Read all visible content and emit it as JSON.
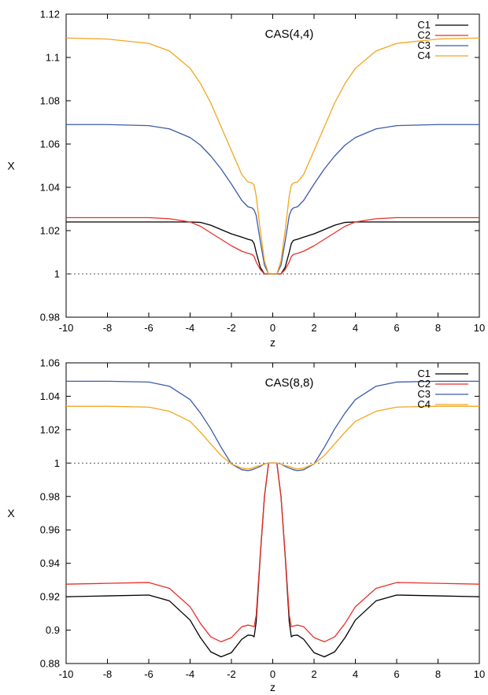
{
  "chart_data": [
    {
      "type": "line",
      "title": "CAS(4,4)",
      "xlabel": "z",
      "ylabel": "X",
      "xlim": [
        -10,
        10
      ],
      "ylim": [
        0.98,
        1.12
      ],
      "xticks": [
        -10,
        -8,
        -6,
        -4,
        -2,
        0,
        2,
        4,
        6,
        8,
        10
      ],
      "yticks": [
        0.98,
        1,
        1.02,
        1.04,
        1.06,
        1.08,
        1.1,
        1.12
      ],
      "x": [
        -10,
        -8,
        -6,
        -5,
        -4,
        -3.5,
        -3,
        -2.5,
        -2,
        -1.5,
        -1.2,
        -1,
        -0.9,
        -0.8,
        -0.6,
        -0.4,
        -0.2,
        0,
        0.2,
        0.4,
        0.6,
        0.8,
        0.9,
        1,
        1.2,
        1.5,
        2,
        2.5,
        3,
        3.5,
        4,
        5,
        6,
        8,
        10
      ],
      "reference_line": {
        "y": 1,
        "style": "dotted"
      },
      "legend_position": "top-right",
      "grid": false,
      "series": [
        {
          "name": "C1",
          "color": "#000000",
          "values": [
            1.024,
            1.024,
            1.024,
            1.024,
            1.024,
            1.0238,
            1.0225,
            1.0205,
            1.0185,
            1.017,
            1.016,
            1.0155,
            1.014,
            1.01,
            1.003,
            1.0,
            1.0,
            1.0,
            1.0,
            1.0,
            1.003,
            1.01,
            1.014,
            1.0155,
            1.016,
            1.017,
            1.0185,
            1.0205,
            1.0225,
            1.0238,
            1.024,
            1.024,
            1.024,
            1.024,
            1.024
          ]
        },
        {
          "name": "C2",
          "color": "#e8302a",
          "values": [
            1.026,
            1.026,
            1.026,
            1.0255,
            1.024,
            1.022,
            1.019,
            1.016,
            1.013,
            1.0105,
            1.0095,
            1.009,
            1.008,
            1.0055,
            1.002,
            1.0,
            1.0,
            1.0,
            1.0,
            1.0,
            1.002,
            1.0055,
            1.008,
            1.009,
            1.0095,
            1.0105,
            1.013,
            1.016,
            1.019,
            1.022,
            1.024,
            1.0255,
            1.026,
            1.026,
            1.026
          ]
        },
        {
          "name": "C3",
          "color": "#3c5ba8",
          "values": [
            1.069,
            1.069,
            1.0685,
            1.067,
            1.063,
            1.0595,
            1.0545,
            1.0485,
            1.0415,
            1.034,
            1.031,
            1.0305,
            1.0295,
            1.027,
            1.015,
            1.004,
            1.0,
            1.0,
            1.0,
            1.004,
            1.015,
            1.027,
            1.0295,
            1.0305,
            1.031,
            1.034,
            1.0415,
            1.0485,
            1.0545,
            1.0595,
            1.063,
            1.067,
            1.0685,
            1.069,
            1.069
          ]
        },
        {
          "name": "C4",
          "color": "#f2a51f",
          "values": [
            1.109,
            1.1085,
            1.1065,
            1.103,
            1.095,
            1.088,
            1.079,
            1.068,
            1.057,
            1.046,
            1.0425,
            1.042,
            1.041,
            1.036,
            1.02,
            1.006,
            1.0,
            1.0,
            1.0,
            1.006,
            1.02,
            1.036,
            1.041,
            1.042,
            1.0425,
            1.046,
            1.057,
            1.068,
            1.079,
            1.088,
            1.095,
            1.103,
            1.1065,
            1.1085,
            1.109
          ]
        }
      ]
    },
    {
      "type": "line",
      "title": "CAS(8,8)",
      "xlabel": "z",
      "ylabel": "X",
      "xlim": [
        -10,
        10
      ],
      "ylim": [
        0.88,
        1.06
      ],
      "xticks": [
        -10,
        -8,
        -6,
        -4,
        -2,
        0,
        2,
        4,
        6,
        8,
        10
      ],
      "yticks": [
        0.88,
        0.9,
        0.92,
        0.94,
        0.96,
        0.98,
        1,
        1.02,
        1.04,
        1.06
      ],
      "x": [
        -10,
        -8,
        -6,
        -5,
        -4,
        -3.5,
        -3,
        -2.5,
        -2,
        -1.5,
        -1.2,
        -1,
        -0.9,
        -0.8,
        -0.6,
        -0.4,
        -0.2,
        0,
        0.2,
        0.4,
        0.6,
        0.8,
        0.9,
        1,
        1.2,
        1.5,
        2,
        2.5,
        3,
        3.5,
        4,
        5,
        6,
        8,
        10
      ],
      "reference_line": {
        "y": 1,
        "style": "dotted"
      },
      "legend_position": "top-right",
      "grid": false,
      "series": [
        {
          "name": "C1",
          "color": "#000000",
          "values": [
            0.92,
            0.9205,
            0.921,
            0.9175,
            0.906,
            0.8955,
            0.887,
            0.884,
            0.8865,
            0.8945,
            0.897,
            0.8968,
            0.896,
            0.905,
            0.945,
            0.98,
            1.0,
            1.0,
            1.0,
            0.98,
            0.945,
            0.905,
            0.896,
            0.8968,
            0.897,
            0.8945,
            0.8865,
            0.884,
            0.887,
            0.8955,
            0.906,
            0.9175,
            0.921,
            0.9205,
            0.92
          ]
        },
        {
          "name": "C2",
          "color": "#e8302a",
          "values": [
            0.9275,
            0.928,
            0.9285,
            0.925,
            0.914,
            0.904,
            0.896,
            0.893,
            0.8955,
            0.902,
            0.903,
            0.9025,
            0.902,
            0.909,
            0.946,
            0.98,
            1.0,
            1.0,
            1.0,
            0.98,
            0.946,
            0.909,
            0.902,
            0.9025,
            0.903,
            0.902,
            0.8955,
            0.893,
            0.896,
            0.904,
            0.914,
            0.925,
            0.9285,
            0.928,
            0.9275
          ]
        },
        {
          "name": "C3",
          "color": "#3c5ba8",
          "values": [
            1.049,
            1.049,
            1.0485,
            1.046,
            1.038,
            1.03,
            1.0205,
            1.0095,
            0.9995,
            0.996,
            0.9955,
            0.996,
            0.9965,
            0.997,
            0.998,
            0.9995,
            1.0,
            1.0,
            1.0,
            0.9995,
            0.998,
            0.997,
            0.9965,
            0.996,
            0.9955,
            0.996,
            0.9995,
            1.0095,
            1.0205,
            1.03,
            1.038,
            1.046,
            1.0485,
            1.049,
            1.049
          ]
        },
        {
          "name": "C4",
          "color": "#f2a51f",
          "values": [
            1.034,
            1.034,
            1.0335,
            1.031,
            1.025,
            1.0185,
            1.0115,
            1.0045,
            0.9995,
            0.997,
            0.9965,
            0.997,
            0.9975,
            0.998,
            0.9985,
            0.9995,
            1.0,
            1.0,
            1.0,
            0.9995,
            0.9985,
            0.998,
            0.9975,
            0.997,
            0.9965,
            0.997,
            0.9995,
            1.0045,
            1.0115,
            1.0185,
            1.025,
            1.031,
            1.0335,
            1.034,
            1.034
          ]
        }
      ]
    }
  ]
}
